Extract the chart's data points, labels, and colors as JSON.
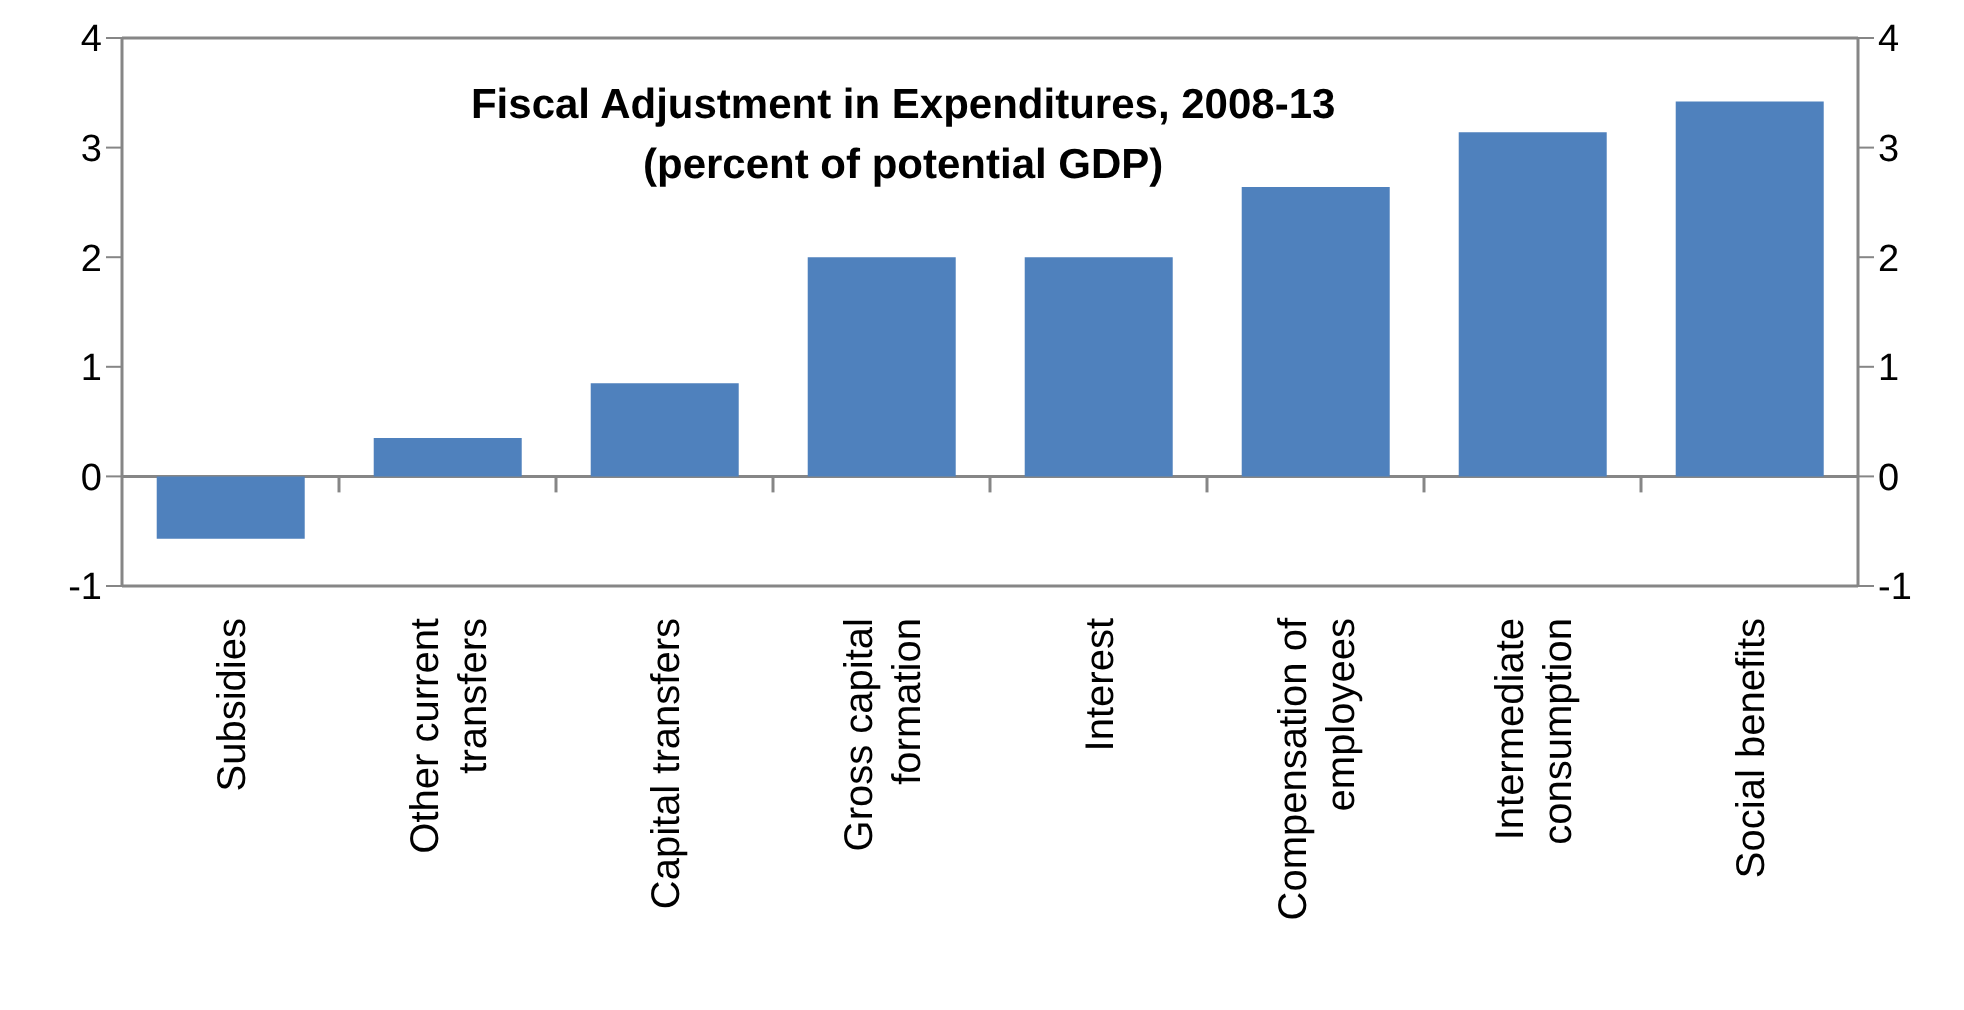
{
  "chart_data": {
    "type": "bar",
    "title": "Fiscal Adjustment in Expenditures, 2008-13\n(percent of potential GDP)",
    "categories": [
      "Subsidies",
      "Other current transfers",
      "Capital transfers",
      "Gross capital formation",
      "Interest",
      "Compensation of employees",
      "Intermediate consumption",
      "Social benefits"
    ],
    "values": [
      -0.57,
      0.35,
      0.85,
      2.0,
      2.0,
      2.64,
      3.14,
      3.42
    ],
    "color": "#4f81bd",
    "ylim": [
      -1,
      4
    ],
    "yticks": [
      -1,
      0,
      1,
      2,
      3,
      4
    ],
    "y2lim": [
      -1,
      4
    ],
    "y2ticks": [
      -1,
      0,
      1,
      2,
      3,
      4
    ]
  }
}
